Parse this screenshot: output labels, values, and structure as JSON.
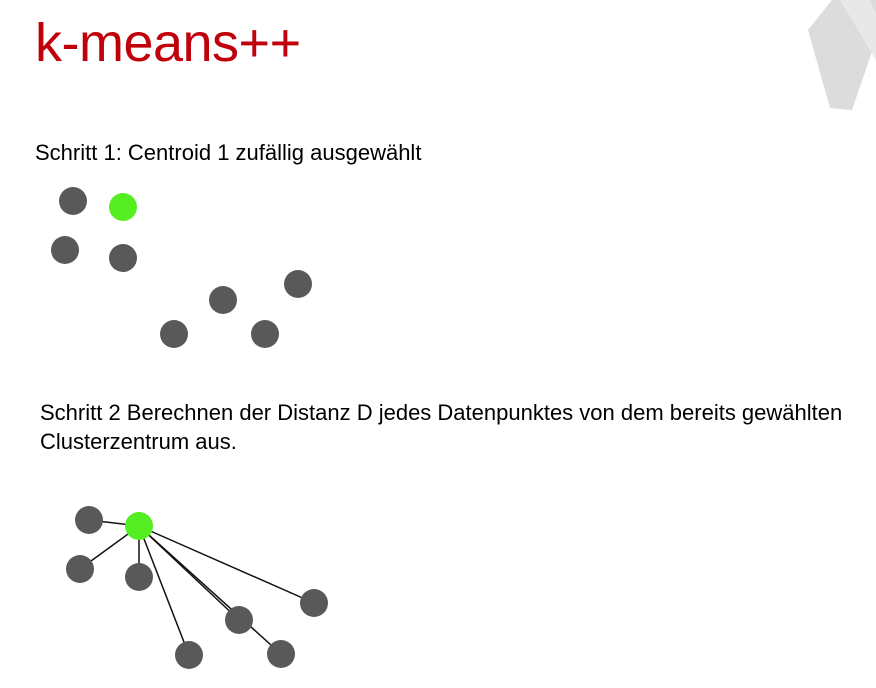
{
  "title": "k-means++",
  "step1": {
    "text": "Schritt 1: Centroid 1 zufällig ausgewählt"
  },
  "step2": {
    "text": "Schritt 2 Berechnen der Distanz D jedes Datenpunktes von dem bereits gewählten Clusterzentrum aus."
  },
  "colors": {
    "title": "#c0000b",
    "centroid": "#55ee22",
    "point": "#595959",
    "line": "#111111",
    "logo": "#d9d9d9"
  },
  "icons": {
    "logo": "logo-watermark-icon"
  }
}
